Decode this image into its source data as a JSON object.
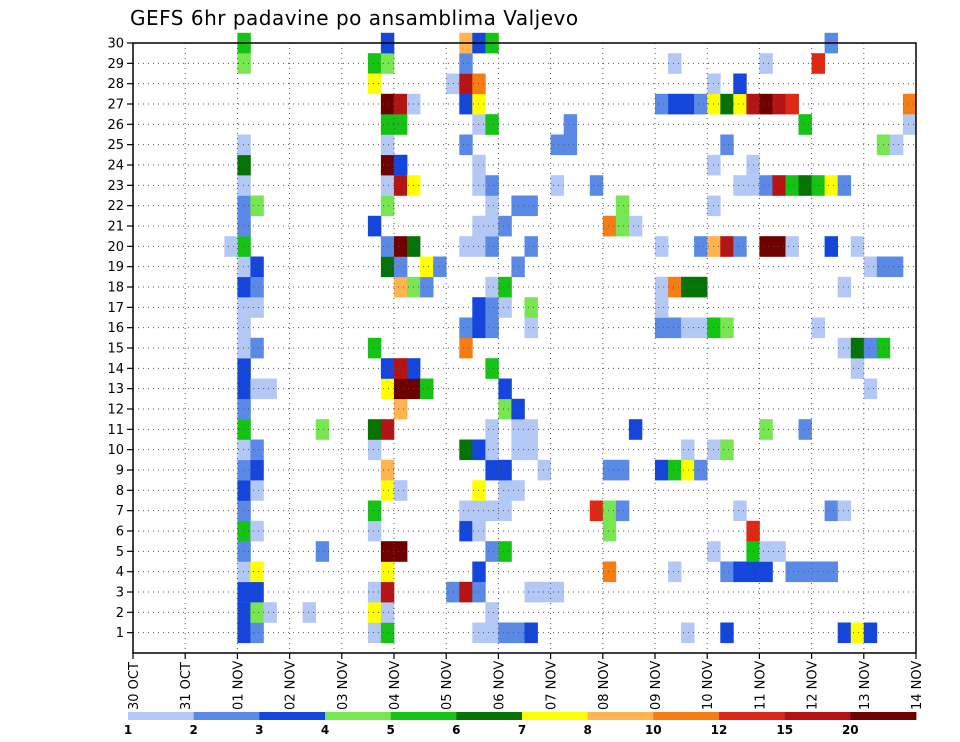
{
  "chart_data": {
    "type": "heatmap",
    "title": "GEFS 6hr padavine po ansamblima Valjevo",
    "xlabel": "",
    "ylabel": "",
    "x_ticks": [
      "30 OCT",
      "31 OCT",
      "01 NOV",
      "02 NOV",
      "03 NOV",
      "04 NOV",
      "05 NOV",
      "06 NOV",
      "07 NOV",
      "08 NOV",
      "09 NOV",
      "10 NOV",
      "11 NOV",
      "12 NOV",
      "13 NOV",
      "14 NOV"
    ],
    "y_ticks": [
      1,
      2,
      3,
      4,
      5,
      6,
      7,
      8,
      9,
      10,
      11,
      12,
      13,
      14,
      15,
      16,
      17,
      18,
      19,
      20,
      21,
      22,
      23,
      24,
      25,
      26,
      27,
      28,
      29,
      30
    ],
    "xlim": [
      0,
      15
    ],
    "ylim": [
      0,
      30
    ],
    "grid": true,
    "colorbar": {
      "labels": [
        "1",
        "2",
        "3",
        "4",
        "5",
        "6",
        "7",
        "8",
        "10",
        "12",
        "15",
        "20"
      ],
      "colors": [
        "#b4c8f5",
        "#5a8ae6",
        "#1446dc",
        "#78e650",
        "#14c314",
        "#057305",
        "#ffff00",
        "#ffb450",
        "#f57d14",
        "#dc2814",
        "#b41414",
        "#6e0000"
      ]
    },
    "cells": [
      [
        2.0,
        1,
        3
      ],
      [
        2.0,
        2,
        3
      ],
      [
        2.0,
        3,
        3
      ],
      [
        2.0,
        4,
        1
      ],
      [
        2.0,
        5,
        2
      ],
      [
        2.0,
        6,
        5
      ],
      [
        2.0,
        7,
        2
      ],
      [
        2.0,
        8,
        3
      ],
      [
        2.0,
        9,
        2
      ],
      [
        2.0,
        10,
        1
      ],
      [
        2.0,
        11,
        5
      ],
      [
        2.0,
        12,
        2
      ],
      [
        2.0,
        13,
        3
      ],
      [
        2.0,
        14,
        3
      ],
      [
        2.0,
        15,
        1
      ],
      [
        2.0,
        16,
        1
      ],
      [
        2.0,
        17,
        1
      ],
      [
        2.0,
        18,
        3
      ],
      [
        2.0,
        19,
        1
      ],
      [
        2.0,
        20,
        5
      ],
      [
        2.0,
        21,
        2
      ],
      [
        2.0,
        22,
        2
      ],
      [
        2.0,
        23,
        1
      ],
      [
        2.0,
        24,
        6
      ],
      [
        2.0,
        25,
        1
      ],
      [
        2.0,
        29,
        4
      ],
      [
        2.0,
        30,
        5
      ],
      [
        2.25,
        1,
        2
      ],
      [
        2.25,
        2,
        4
      ],
      [
        2.25,
        3,
        3
      ],
      [
        2.25,
        4,
        7
      ],
      [
        2.25,
        6,
        1
      ],
      [
        2.25,
        8,
        1
      ],
      [
        2.25,
        9,
        3
      ],
      [
        2.25,
        10,
        2
      ],
      [
        2.25,
        13,
        1
      ],
      [
        2.25,
        15,
        2
      ],
      [
        2.25,
        17,
        1
      ],
      [
        2.25,
        18,
        2
      ],
      [
        2.25,
        19,
        3
      ],
      [
        2.25,
        22,
        4
      ],
      [
        1.75,
        20,
        1
      ],
      [
        2.5,
        2,
        1
      ],
      [
        2.5,
        13,
        1
      ],
      [
        3.25,
        2,
        1
      ],
      [
        3.5,
        5,
        2
      ],
      [
        3.5,
        11,
        4
      ],
      [
        4.5,
        1,
        1
      ],
      [
        4.5,
        2,
        7
      ],
      [
        4.5,
        3,
        1
      ],
      [
        4.5,
        6,
        1
      ],
      [
        4.5,
        7,
        5
      ],
      [
        4.5,
        10,
        1
      ],
      [
        4.5,
        11,
        6
      ],
      [
        4.5,
        15,
        5
      ],
      [
        4.5,
        21,
        3
      ],
      [
        4.5,
        29,
        5
      ],
      [
        4.5,
        28,
        7
      ],
      [
        4.75,
        1,
        5
      ],
      [
        4.75,
        2,
        1
      ],
      [
        4.75,
        3,
        11
      ],
      [
        4.75,
        4,
        7
      ],
      [
        4.75,
        5,
        12
      ],
      [
        4.75,
        8,
        7
      ],
      [
        4.75,
        9,
        8
      ],
      [
        4.75,
        11,
        11
      ],
      [
        4.75,
        13,
        7
      ],
      [
        4.75,
        14,
        3
      ],
      [
        4.75,
        19,
        6
      ],
      [
        4.75,
        20,
        2
      ],
      [
        4.75,
        22,
        4
      ],
      [
        4.75,
        23,
        1
      ],
      [
        4.75,
        24,
        12
      ],
      [
        4.75,
        25,
        1
      ],
      [
        4.75,
        26,
        5
      ],
      [
        4.75,
        27,
        12
      ],
      [
        4.75,
        29,
        4
      ],
      [
        4.75,
        30,
        3
      ],
      [
        5.0,
        5,
        12
      ],
      [
        5.0,
        8,
        1
      ],
      [
        5.0,
        12,
        8
      ],
      [
        5.0,
        13,
        12
      ],
      [
        5.0,
        14,
        11
      ],
      [
        5.0,
        18,
        8
      ],
      [
        5.0,
        19,
        2
      ],
      [
        5.0,
        20,
        12
      ],
      [
        5.0,
        23,
        11
      ],
      [
        5.0,
        24,
        3
      ],
      [
        5.0,
        26,
        5
      ],
      [
        5.0,
        27,
        11
      ],
      [
        5.25,
        13,
        12
      ],
      [
        5.25,
        14,
        3
      ],
      [
        5.25,
        18,
        4
      ],
      [
        5.25,
        20,
        6
      ],
      [
        5.25,
        23,
        7
      ],
      [
        5.25,
        27,
        1
      ],
      [
        5.5,
        13,
        5
      ],
      [
        5.5,
        18,
        2
      ],
      [
        5.5,
        19,
        7
      ],
      [
        5.75,
        19,
        2
      ],
      [
        6.0,
        3,
        2
      ],
      [
        6.0,
        28,
        1
      ],
      [
        6.25,
        3,
        11
      ],
      [
        6.25,
        6,
        3
      ],
      [
        6.25,
        7,
        1
      ],
      [
        6.25,
        10,
        6
      ],
      [
        6.25,
        15,
        9
      ],
      [
        6.25,
        16,
        2
      ],
      [
        6.25,
        20,
        1
      ],
      [
        6.25,
        25,
        2
      ],
      [
        6.25,
        27,
        3
      ],
      [
        6.25,
        28,
        11
      ],
      [
        6.25,
        29,
        2
      ],
      [
        6.25,
        30,
        8
      ],
      [
        6.5,
        1,
        1
      ],
      [
        6.5,
        3,
        2
      ],
      [
        6.5,
        4,
        3
      ],
      [
        6.5,
        6,
        1
      ],
      [
        6.5,
        7,
        1
      ],
      [
        6.5,
        8,
        7
      ],
      [
        6.5,
        10,
        3
      ],
      [
        6.5,
        16,
        3
      ],
      [
        6.5,
        17,
        3
      ],
      [
        6.5,
        20,
        1
      ],
      [
        6.5,
        21,
        1
      ],
      [
        6.5,
        23,
        1
      ],
      [
        6.5,
        24,
        1
      ],
      [
        6.5,
        26,
        1
      ],
      [
        6.5,
        27,
        7
      ],
      [
        6.5,
        28,
        9
      ],
      [
        6.5,
        30,
        3
      ],
      [
        6.75,
        1,
        1
      ],
      [
        6.75,
        2,
        1
      ],
      [
        6.75,
        5,
        2
      ],
      [
        6.75,
        7,
        1
      ],
      [
        6.75,
        9,
        3
      ],
      [
        6.75,
        10,
        1
      ],
      [
        6.75,
        11,
        1
      ],
      [
        6.75,
        14,
        5
      ],
      [
        6.75,
        16,
        2
      ],
      [
        6.75,
        17,
        2
      ],
      [
        6.75,
        18,
        1
      ],
      [
        6.75,
        20,
        2
      ],
      [
        6.75,
        21,
        1
      ],
      [
        6.75,
        22,
        1
      ],
      [
        6.75,
        23,
        2
      ],
      [
        6.75,
        26,
        5
      ],
      [
        6.75,
        30,
        5
      ],
      [
        7.0,
        1,
        2
      ],
      [
        7.0,
        5,
        5
      ],
      [
        7.0,
        7,
        1
      ],
      [
        7.0,
        8,
        1
      ],
      [
        7.0,
        9,
        3
      ],
      [
        7.0,
        12,
        4
      ],
      [
        7.0,
        13,
        3
      ],
      [
        7.0,
        17,
        1
      ],
      [
        7.0,
        18,
        5
      ],
      [
        7.0,
        21,
        2
      ],
      [
        7.25,
        1,
        2
      ],
      [
        7.25,
        8,
        1
      ],
      [
        7.25,
        10,
        1
      ],
      [
        7.25,
        11,
        1
      ],
      [
        7.25,
        12,
        3
      ],
      [
        7.25,
        19,
        2
      ],
      [
        7.25,
        22,
        2
      ],
      [
        7.5,
        1,
        3
      ],
      [
        7.5,
        3,
        1
      ],
      [
        7.5,
        10,
        1
      ],
      [
        7.5,
        11,
        1
      ],
      [
        7.5,
        16,
        1
      ],
      [
        7.5,
        17,
        4
      ],
      [
        7.5,
        20,
        2
      ],
      [
        7.5,
        22,
        2
      ],
      [
        7.75,
        3,
        1
      ],
      [
        7.75,
        9,
        1
      ],
      [
        8.0,
        3,
        1
      ],
      [
        8.0,
        23,
        1
      ],
      [
        8.0,
        25,
        2
      ],
      [
        8.25,
        25,
        2
      ],
      [
        8.25,
        26,
        2
      ],
      [
        8.75,
        7,
        10
      ],
      [
        8.75,
        23,
        2
      ],
      [
        9.0,
        4,
        9
      ],
      [
        9.0,
        6,
        4
      ],
      [
        9.0,
        7,
        4
      ],
      [
        9.0,
        9,
        2
      ],
      [
        9.0,
        21,
        9
      ],
      [
        9.25,
        9,
        2
      ],
      [
        9.25,
        21,
        4
      ],
      [
        9.25,
        22,
        4
      ],
      [
        9.25,
        7,
        2
      ],
      [
        9.5,
        11,
        3
      ],
      [
        9.5,
        21,
        1
      ],
      [
        10.0,
        9,
        3
      ],
      [
        10.0,
        16,
        2
      ],
      [
        10.0,
        17,
        1
      ],
      [
        10.0,
        18,
        1
      ],
      [
        10.0,
        20,
        1
      ],
      [
        10.0,
        27,
        2
      ],
      [
        10.25,
        4,
        1
      ],
      [
        10.25,
        9,
        5
      ],
      [
        10.25,
        16,
        2
      ],
      [
        10.25,
        18,
        9
      ],
      [
        10.25,
        27,
        3
      ],
      [
        10.25,
        29,
        1
      ],
      [
        10.5,
        1,
        1
      ],
      [
        10.5,
        9,
        7
      ],
      [
        10.5,
        10,
        1
      ],
      [
        10.5,
        16,
        1
      ],
      [
        10.5,
        18,
        6
      ],
      [
        10.5,
        27,
        3
      ],
      [
        10.75,
        9,
        2
      ],
      [
        10.75,
        16,
        1
      ],
      [
        10.75,
        18,
        6
      ],
      [
        10.75,
        20,
        2
      ],
      [
        10.75,
        27,
        2
      ],
      [
        11.0,
        10,
        1
      ],
      [
        11.0,
        16,
        5
      ],
      [
        11.0,
        20,
        8
      ],
      [
        11.0,
        22,
        1
      ],
      [
        11.0,
        24,
        1
      ],
      [
        11.0,
        5,
        1
      ],
      [
        11.0,
        27,
        7
      ],
      [
        11.0,
        28,
        1
      ],
      [
        11.25,
        1,
        3
      ],
      [
        11.25,
        4,
        2
      ],
      [
        11.25,
        10,
        4
      ],
      [
        11.25,
        16,
        4
      ],
      [
        11.25,
        20,
        11
      ],
      [
        11.25,
        25,
        2
      ],
      [
        11.25,
        27,
        6
      ],
      [
        11.5,
        4,
        3
      ],
      [
        11.5,
        7,
        1
      ],
      [
        11.5,
        20,
        2
      ],
      [
        11.5,
        23,
        1
      ],
      [
        11.5,
        27,
        7
      ],
      [
        11.5,
        28,
        3
      ],
      [
        11.75,
        4,
        3
      ],
      [
        11.75,
        5,
        5
      ],
      [
        11.75,
        6,
        10
      ],
      [
        11.75,
        23,
        1
      ],
      [
        11.75,
        24,
        1
      ],
      [
        11.75,
        27,
        11
      ],
      [
        12.0,
        4,
        3
      ],
      [
        12.0,
        5,
        1
      ],
      [
        12.0,
        11,
        4
      ],
      [
        12.0,
        20,
        12
      ],
      [
        12.0,
        23,
        2
      ],
      [
        12.0,
        27,
        12
      ],
      [
        12.0,
        29,
        1
      ],
      [
        12.25,
        5,
        1
      ],
      [
        12.25,
        20,
        12
      ],
      [
        12.25,
        23,
        11
      ],
      [
        12.25,
        27,
        11
      ],
      [
        12.5,
        4,
        2
      ],
      [
        12.5,
        20,
        1
      ],
      [
        12.5,
        23,
        5
      ],
      [
        12.5,
        27,
        10
      ],
      [
        12.75,
        4,
        2
      ],
      [
        12.75,
        11,
        2
      ],
      [
        12.75,
        23,
        6
      ],
      [
        12.75,
        26,
        5
      ],
      [
        13.0,
        4,
        2
      ],
      [
        13.0,
        16,
        1
      ],
      [
        13.0,
        23,
        5
      ],
      [
        13.0,
        29,
        10
      ],
      [
        13.25,
        4,
        2
      ],
      [
        13.25,
        7,
        2
      ],
      [
        13.25,
        20,
        3
      ],
      [
        13.25,
        23,
        7
      ],
      [
        13.25,
        30,
        2
      ],
      [
        13.5,
        1,
        3
      ],
      [
        13.5,
        7,
        1
      ],
      [
        13.5,
        15,
        1
      ],
      [
        13.5,
        18,
        1
      ],
      [
        13.5,
        23,
        2
      ],
      [
        13.75,
        1,
        7
      ],
      [
        13.75,
        14,
        1
      ],
      [
        13.75,
        15,
        6
      ],
      [
        13.75,
        20,
        1
      ],
      [
        14.0,
        1,
        3
      ],
      [
        14.0,
        13,
        1
      ],
      [
        14.0,
        15,
        2
      ],
      [
        14.0,
        19,
        1
      ],
      [
        14.25,
        15,
        5
      ],
      [
        14.25,
        19,
        2
      ],
      [
        14.25,
        25,
        4
      ],
      [
        14.5,
        19,
        2
      ],
      [
        14.5,
        25,
        1
      ],
      [
        14.75,
        26,
        1
      ],
      [
        14.75,
        27,
        9
      ]
    ]
  }
}
